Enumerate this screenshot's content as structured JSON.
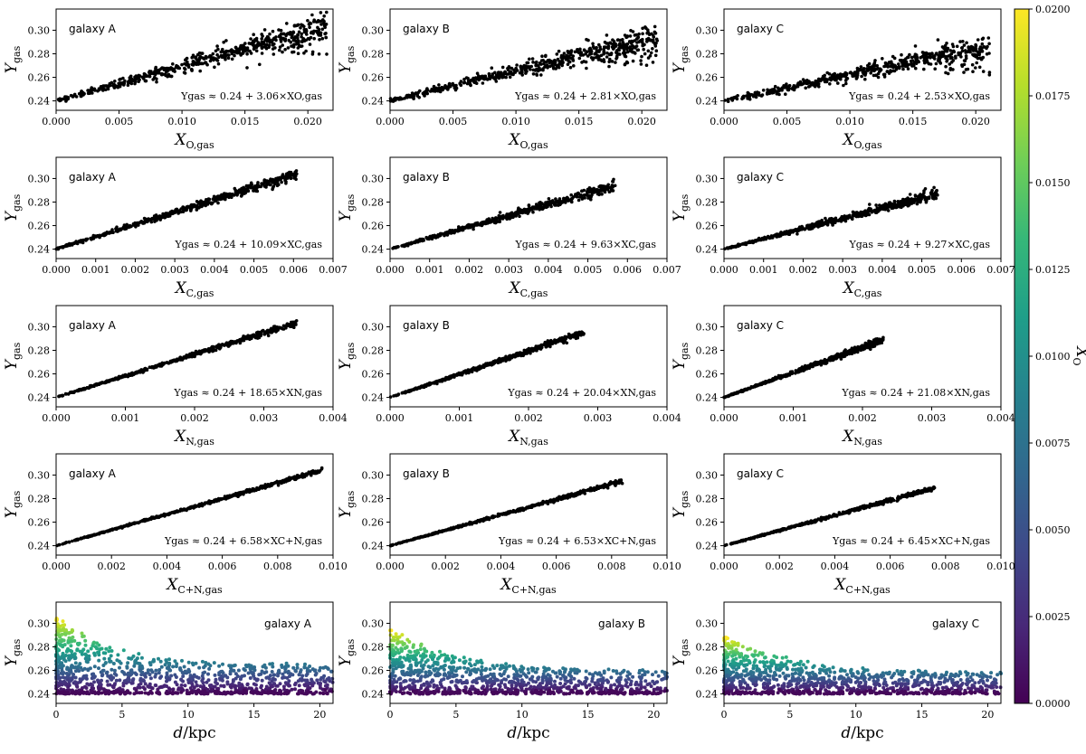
{
  "chart_data": {
    "type": "scatter",
    "columns": [
      "galaxy A",
      "galaxy B",
      "galaxy C"
    ],
    "rows": [
      {
        "id": "O",
        "xlabel_main": "X",
        "xlabel_sub": "O,gas",
        "xlim": [
          0,
          0.022
        ],
        "xticks": [
          "0.000",
          "0.005",
          "0.010",
          "0.015",
          "0.020"
        ],
        "xtick_values": [
          0,
          0.005,
          0.01,
          0.015,
          0.02
        ],
        "x_max": [
          0.0215,
          0.0213,
          0.0211
        ],
        "y_end": [
          0.304,
          0.294,
          0.287
        ],
        "spread": 0.012,
        "fits": [
          {
            "text": "Ygas ≈ 0.24 + 3.06×XO,gas",
            "intercept": 0.24,
            "slope": 3.06
          },
          {
            "text": "Ygas ≈ 0.24 + 2.81×XO,gas",
            "intercept": 0.24,
            "slope": 2.81
          },
          {
            "text": "Ygas ≈ 0.24 + 2.53×XO,gas",
            "intercept": 0.24,
            "slope": 2.53
          }
        ]
      },
      {
        "id": "C",
        "xlabel_main": "X",
        "xlabel_sub": "C,gas",
        "xlim": [
          0,
          0.007
        ],
        "xticks": [
          "0.000",
          "0.001",
          "0.002",
          "0.003",
          "0.004",
          "0.005",
          "0.006",
          "0.007"
        ],
        "xtick_values": [
          0,
          0.001,
          0.002,
          0.003,
          0.004,
          0.005,
          0.006,
          0.007
        ],
        "x_max": [
          0.0061,
          0.0057,
          0.0054
        ],
        "y_end": [
          0.304,
          0.294,
          0.287
        ],
        "spread": 0.005,
        "fits": [
          {
            "text": "Ygas ≈ 0.24 + 10.09×XC,gas",
            "intercept": 0.24,
            "slope": 10.09
          },
          {
            "text": "Ygas ≈ 0.24 + 9.63×XC,gas",
            "intercept": 0.24,
            "slope": 9.63
          },
          {
            "text": "Ygas ≈ 0.24 + 9.27×XC,gas",
            "intercept": 0.24,
            "slope": 9.27
          }
        ]
      },
      {
        "id": "N",
        "xlabel_main": "X",
        "xlabel_sub": "N,gas",
        "xlim": [
          0,
          0.004
        ],
        "xticks": [
          "0.000",
          "0.001",
          "0.002",
          "0.003",
          "0.004"
        ],
        "xtick_values": [
          0,
          0.001,
          0.002,
          0.003,
          0.004
        ],
        "x_max": [
          0.0035,
          0.0028,
          0.0023
        ],
        "y_end": [
          0.304,
          0.295,
          0.289
        ],
        "spread": 0.003,
        "fits": [
          {
            "text": "Ygas ≈ 0.24 + 18.65×XN,gas",
            "intercept": 0.24,
            "slope": 18.65
          },
          {
            "text": "Ygas ≈ 0.24 + 20.04×XN,gas",
            "intercept": 0.24,
            "slope": 20.04
          },
          {
            "text": "Ygas ≈ 0.24 + 21.08×XN,gas",
            "intercept": 0.24,
            "slope": 21.08
          }
        ]
      },
      {
        "id": "CN",
        "xlabel_main": "X",
        "xlabel_sub": "C+N,gas",
        "xlim": [
          0,
          0.01
        ],
        "xticks": [
          "0.000",
          "0.002",
          "0.004",
          "0.006",
          "0.008",
          "0.010"
        ],
        "xtick_values": [
          0,
          0.002,
          0.004,
          0.006,
          0.008,
          0.01
        ],
        "x_max": [
          0.0096,
          0.0084,
          0.0076
        ],
        "y_end": [
          0.304,
          0.295,
          0.289
        ],
        "spread": 0.002,
        "fits": [
          {
            "text": "Ygas ≈ 0.24 + 6.58×XC+N,gas",
            "intercept": 0.24,
            "slope": 6.58
          },
          {
            "text": "Ygas ≈ 0.24 + 6.53×XC+N,gas",
            "intercept": 0.24,
            "slope": 6.53
          },
          {
            "text": "Ygas ≈ 0.24 + 6.45×XC+N,gas",
            "intercept": 0.24,
            "slope": 6.45
          }
        ]
      },
      {
        "id": "d",
        "xlabel_main": "d",
        "xlabel_sub": "/kpc",
        "xlim": [
          0,
          21
        ],
        "xticks": [
          "0",
          "5",
          "10",
          "15",
          "20"
        ],
        "xtick_values": [
          0,
          5,
          10,
          15,
          20
        ],
        "y_top": [
          0.304,
          0.294,
          0.288
        ]
      }
    ],
    "ylabel_main": "Y",
    "ylabel_sub": "gas",
    "ylim": [
      0.232,
      0.318
    ],
    "yticks": [
      "0.24",
      "0.26",
      "0.28",
      "0.30"
    ],
    "ytick_values": [
      0.24,
      0.26,
      0.28,
      0.3
    ],
    "colorbar": {
      "label_main": "X",
      "label_sub": "O",
      "range": [
        0,
        0.02
      ],
      "ticks": [
        "0.0000",
        "0.0025",
        "0.0050",
        "0.0075",
        "0.0100",
        "0.0125",
        "0.0150",
        "0.0175",
        "0.0200"
      ],
      "tick_values": [
        0,
        0.0025,
        0.005,
        0.0075,
        0.01,
        0.0125,
        0.015,
        0.0175,
        0.02
      ],
      "colormap": "viridis",
      "stops": [
        "#440154",
        "#482878",
        "#3e4989",
        "#31688e",
        "#26828e",
        "#1f9e89",
        "#35b779",
        "#6ece58",
        "#b5de2b",
        "#fde725"
      ]
    },
    "marker_color": "#000000"
  }
}
